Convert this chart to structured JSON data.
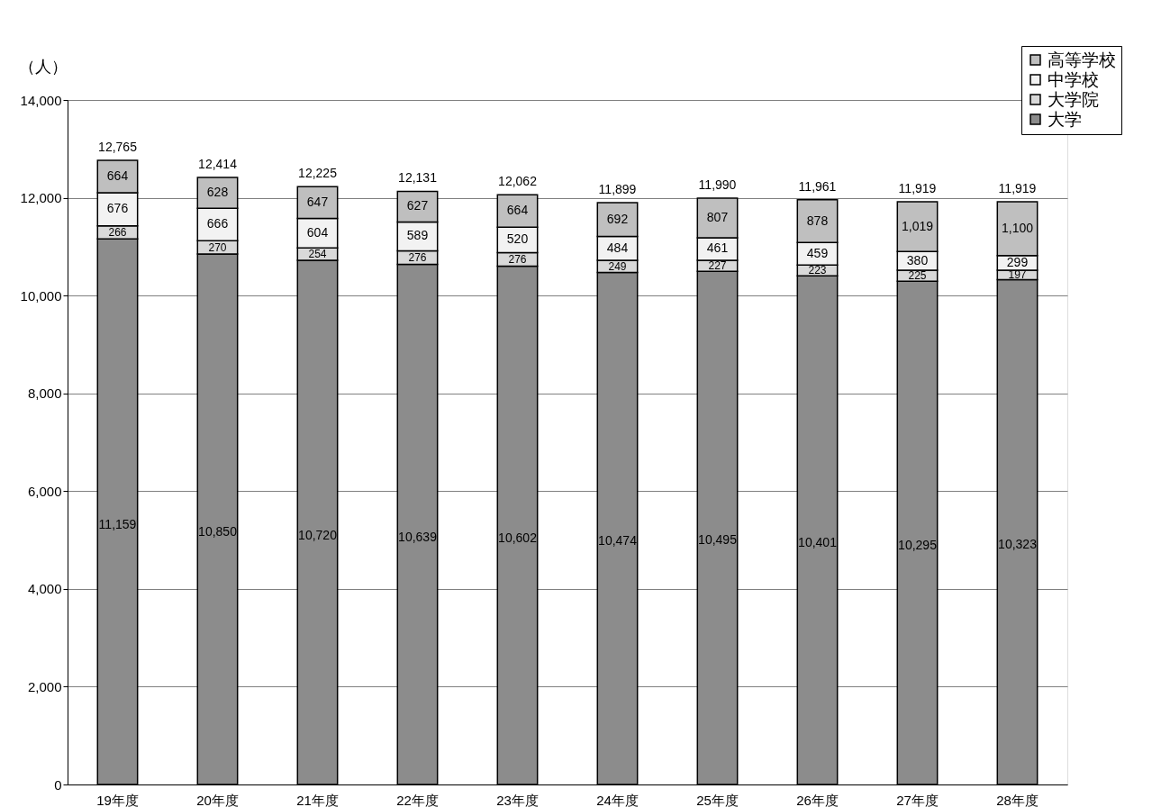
{
  "chart_data": {
    "type": "bar",
    "stacked": true,
    "ylabel": "（人）",
    "categories": [
      "19年度",
      "20年度",
      "21年度",
      "22年度",
      "23年度",
      "24年度",
      "25年度",
      "26年度",
      "27年度",
      "28年度"
    ],
    "series": [
      {
        "name": "大学",
        "color": "#8c8c8c",
        "values": [
          11159,
          10850,
          10720,
          10639,
          10602,
          10474,
          10495,
          10401,
          10295,
          10323
        ],
        "value_labels": [
          "11,159",
          "10,850",
          "10,720",
          "10,639",
          "10,602",
          "10,474",
          "10,495",
          "10,401",
          "10,295",
          "10,323"
        ]
      },
      {
        "name": "大学院",
        "color": "#d9d9d9",
        "values": [
          266,
          270,
          254,
          276,
          276,
          249,
          227,
          223,
          225,
          197
        ],
        "value_labels": [
          "266",
          "270",
          "254",
          "276",
          "276",
          "249",
          "227",
          "223",
          "225",
          "197"
        ]
      },
      {
        "name": "中学校",
        "color": "#f2f2f2",
        "values": [
          676,
          666,
          604,
          589,
          520,
          484,
          461,
          459,
          380,
          299
        ],
        "value_labels": [
          "676",
          "666",
          "604",
          "589",
          "520",
          "484",
          "461",
          "459",
          "380",
          "299"
        ]
      },
      {
        "name": "高等学校",
        "color": "#bfbfbf",
        "values": [
          664,
          628,
          647,
          627,
          664,
          692,
          807,
          878,
          1019,
          1100
        ],
        "value_labels": [
          "664",
          "628",
          "647",
          "627",
          "664",
          "692",
          "807",
          "878",
          "1,019",
          "1,100"
        ]
      }
    ],
    "totals": [
      "12,765",
      "12,414",
      "12,225",
      "12,131",
      "12,062",
      "11,899",
      "11,990",
      "11,961",
      "11,919",
      "11,919"
    ],
    "ylim": [
      0,
      14000
    ],
    "yticks": [
      {
        "value": 0,
        "label": "0"
      },
      {
        "value": 2000,
        "label": "2,000"
      },
      {
        "value": 4000,
        "label": "4,000"
      },
      {
        "value": 6000,
        "label": "6,000"
      },
      {
        "value": 8000,
        "label": "8,000"
      },
      {
        "value": 10000,
        "label": "10,000"
      },
      {
        "value": 12000,
        "label": "12,000"
      },
      {
        "value": 14000,
        "label": "14,000"
      }
    ],
    "grid": "y",
    "legend": "top right"
  }
}
